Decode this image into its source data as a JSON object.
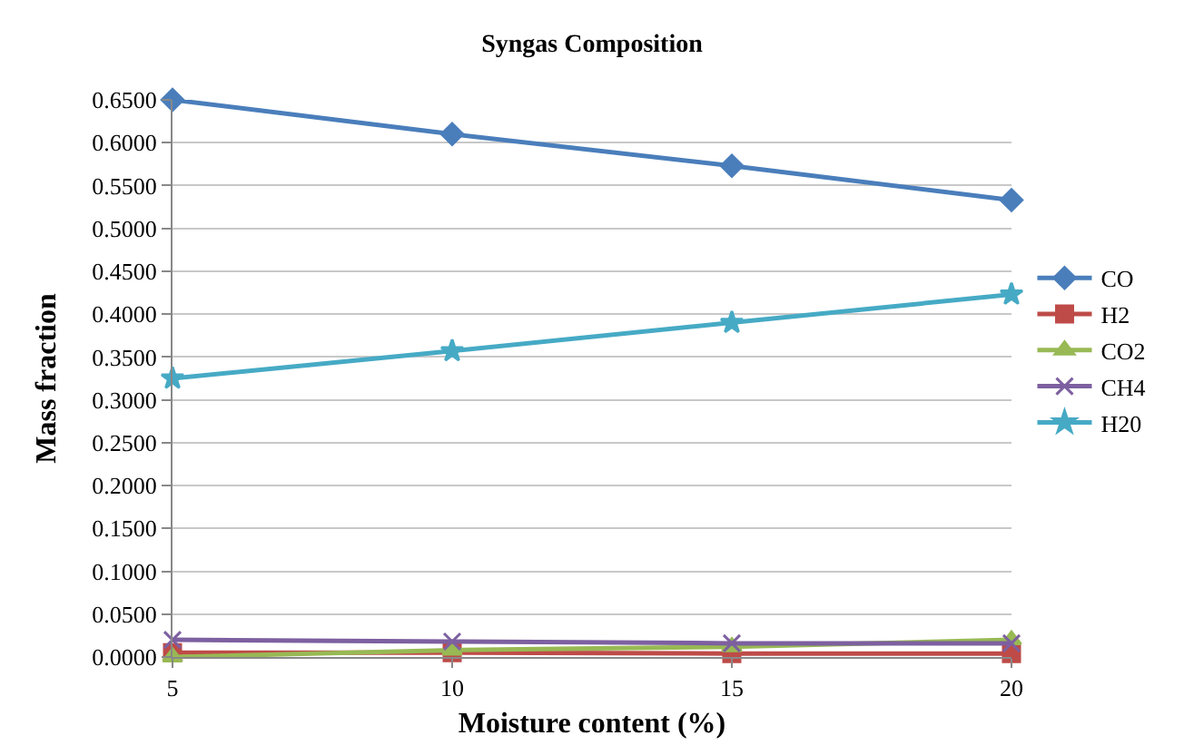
{
  "chart_data": {
    "type": "line",
    "title": "Syngas Composition",
    "xlabel": "Moisture content (%)",
    "ylabel": "Mass fraction",
    "x": [
      5,
      10,
      15,
      20
    ],
    "xlim": [
      5,
      20
    ],
    "xticks": [
      5,
      10,
      15,
      20
    ],
    "ylim": [
      0,
      0.65
    ],
    "yticks": [
      {
        "value": 0,
        "label": "0.0000"
      },
      {
        "value": 0.05,
        "label": "0.0500"
      },
      {
        "value": 0.1,
        "label": "0.1000"
      },
      {
        "value": 0.15,
        "label": "0.1500"
      },
      {
        "value": 0.2,
        "label": "0.2000"
      },
      {
        "value": 0.25,
        "label": "0.2500"
      },
      {
        "value": 0.3,
        "label": "0.3000"
      },
      {
        "value": 0.35,
        "label": "0.3500"
      },
      {
        "value": 0.4,
        "label": "0.4000"
      },
      {
        "value": 0.45,
        "label": "0.4500"
      },
      {
        "value": 0.5,
        "label": "0.5000"
      },
      {
        "value": 0.55,
        "label": "0.5500"
      },
      {
        "value": 0.6,
        "label": "0.6000"
      },
      {
        "value": 0.65,
        "label": "0.6500"
      }
    ],
    "grid": "y",
    "legend": "right",
    "series": [
      {
        "name": "CO",
        "color": "#4a7ebb",
        "marker": "diamond",
        "values": [
          0.65,
          0.61,
          0.573,
          0.533
        ]
      },
      {
        "name": "H2",
        "color": "#be4b48",
        "marker": "square",
        "values": [
          0.005,
          0.005,
          0.004,
          0.004
        ]
      },
      {
        "name": "CO2",
        "color": "#98b954",
        "marker": "triangle",
        "values": [
          0.0,
          0.008,
          0.012,
          0.02
        ]
      },
      {
        "name": "CH4",
        "color": "#7d60a0",
        "marker": "cross",
        "values": [
          0.02,
          0.018,
          0.016,
          0.016
        ]
      },
      {
        "name": "H20",
        "color": "#46aac5",
        "marker": "star",
        "values": [
          0.325,
          0.357,
          0.39,
          0.423
        ]
      }
    ]
  }
}
